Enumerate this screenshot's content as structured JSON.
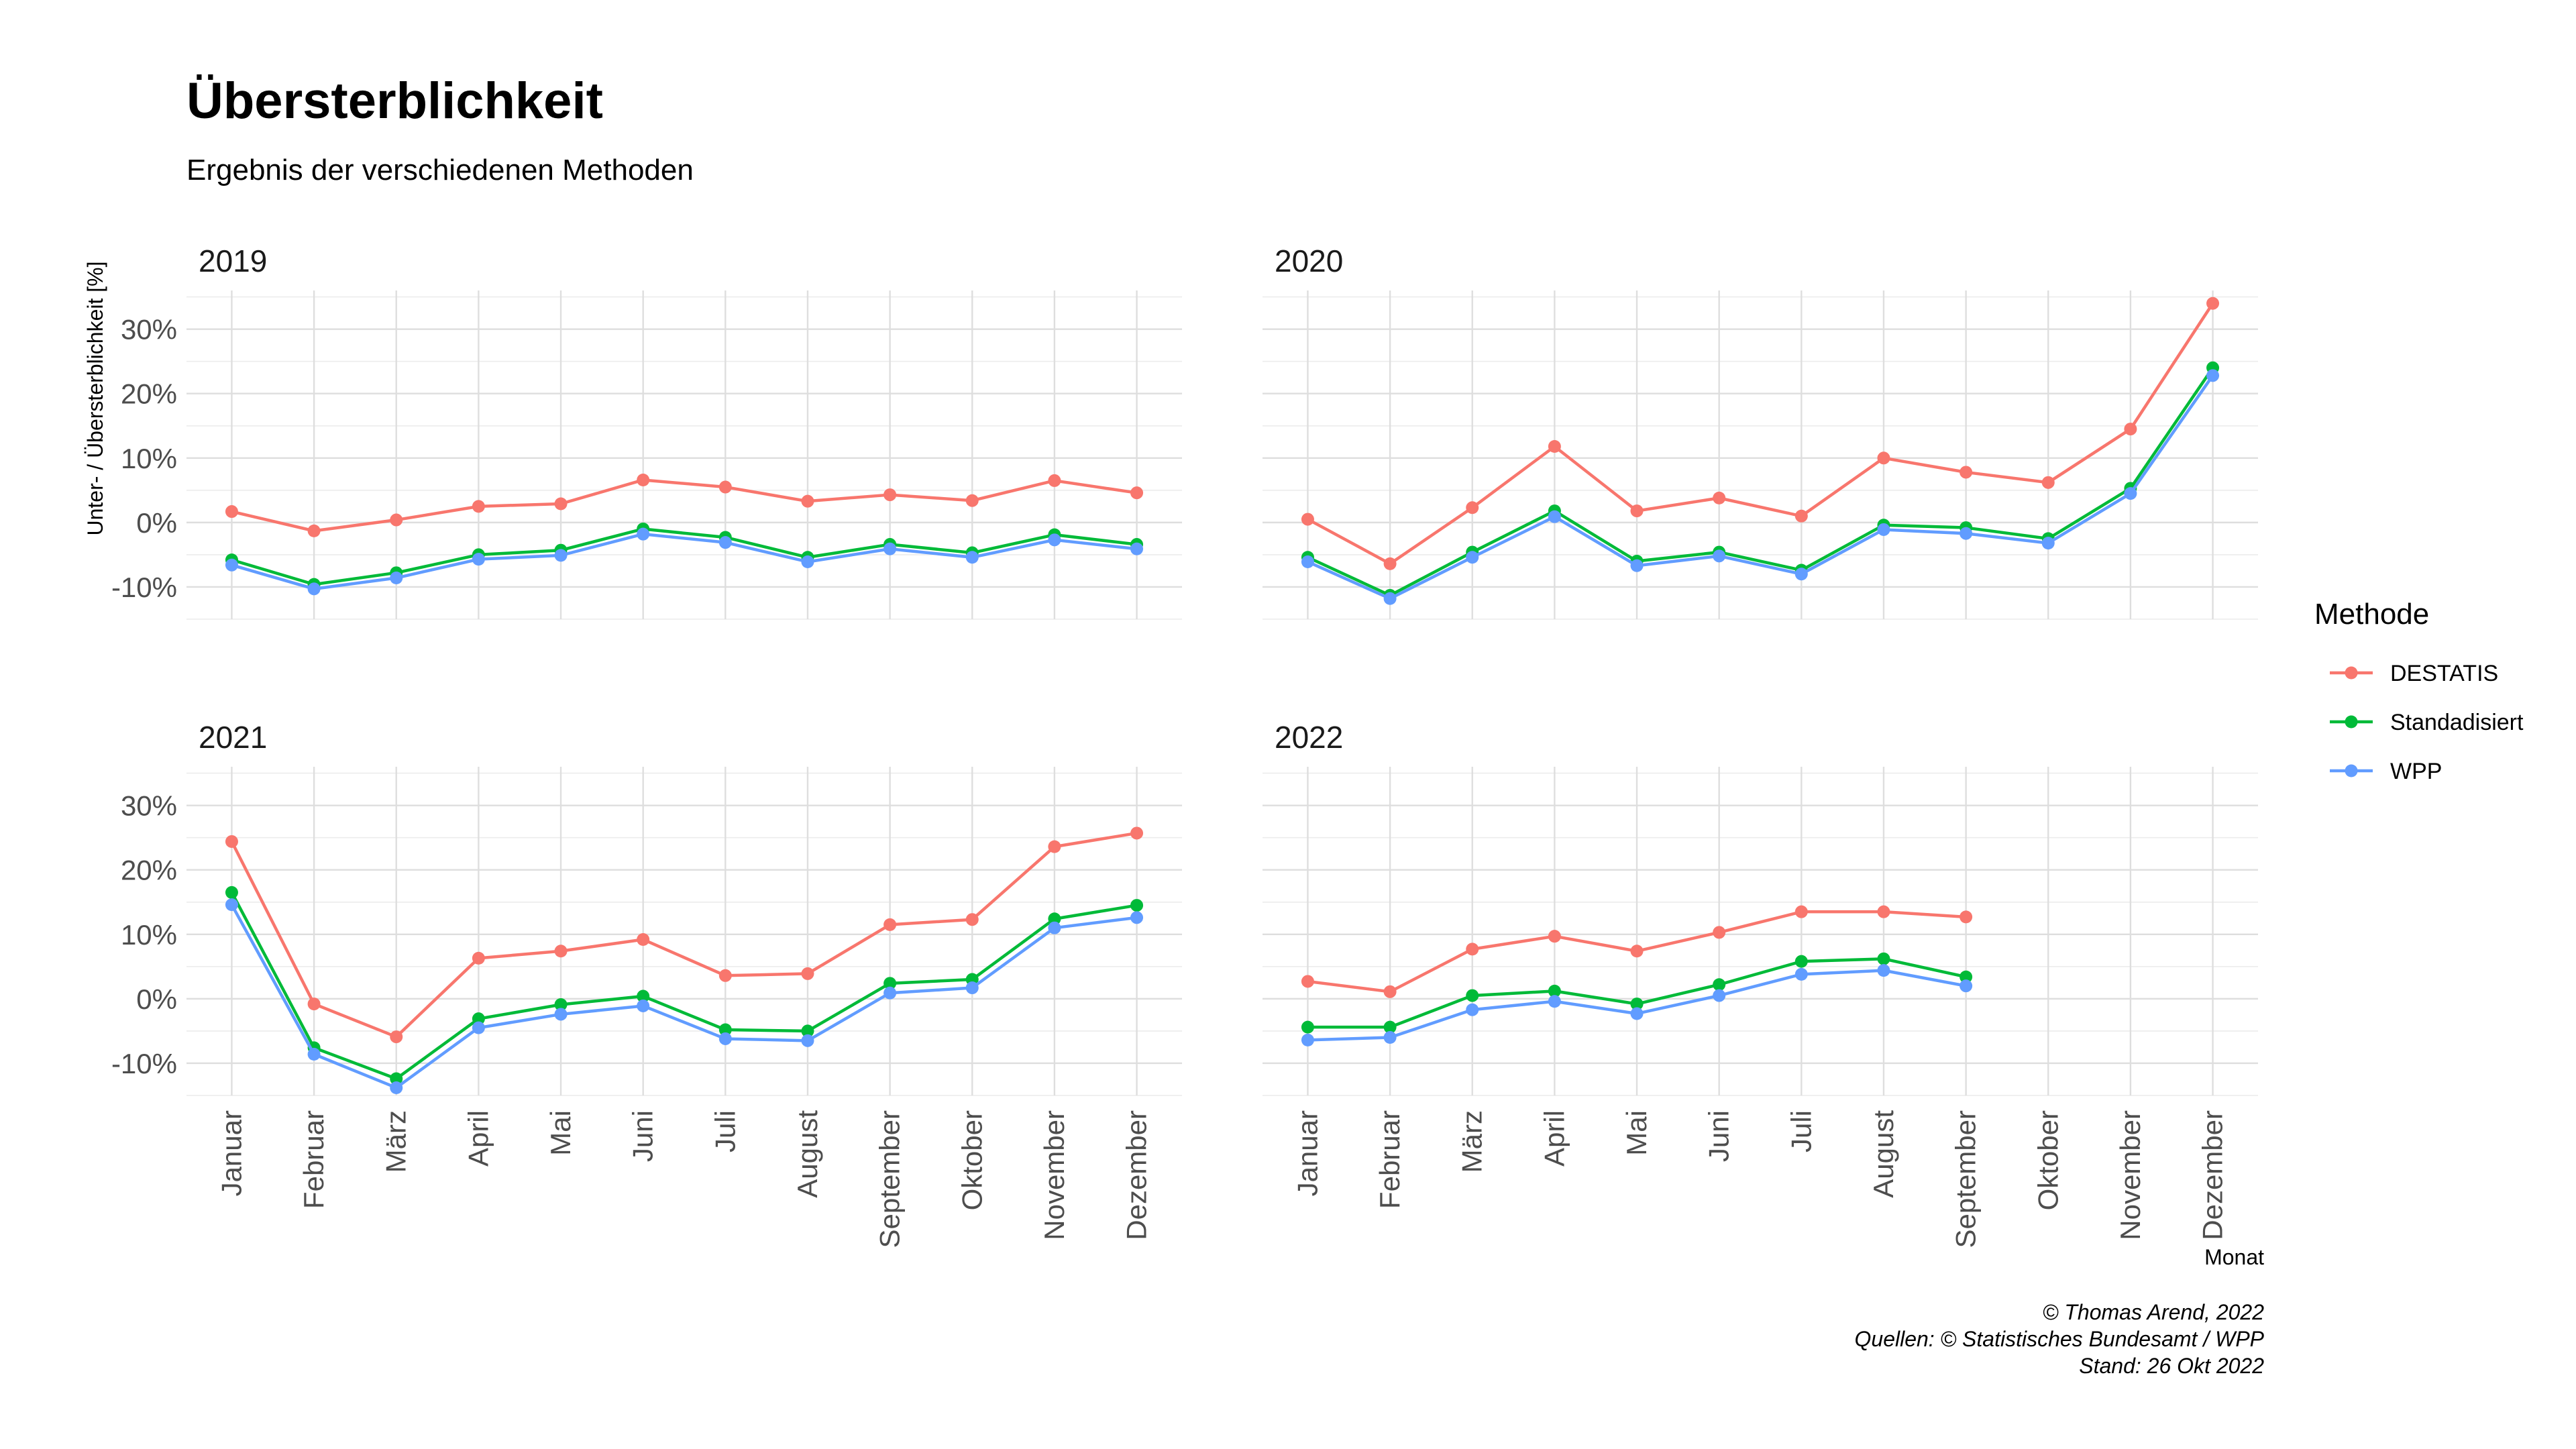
{
  "chart_data": {
    "type": "line",
    "title": "Übersterblichkeit",
    "subtitle": "Ergebnis der verschiedenen Methoden",
    "xlabel": "Monat",
    "ylabel": "Unter- / Übersterblichkeit [%]",
    "ylim": [
      -15,
      36
    ],
    "yticks": [
      -10,
      0,
      10,
      20,
      30
    ],
    "ytick_labels": [
      "-10%",
      "0%",
      "10%",
      "20%",
      "30%"
    ],
    "categories": [
      "Januar",
      "Februar",
      "März",
      "April",
      "Mai",
      "Juni",
      "Juli",
      "August",
      "September",
      "Oktober",
      "November",
      "Dezember"
    ],
    "grid": true,
    "legend": {
      "title": "Methode",
      "position": "right",
      "entries": [
        "DESTATIS",
        "Standadisiert",
        "WPP"
      ]
    },
    "colors": {
      "DESTATIS": "#F8766D",
      "Standadisiert": "#00BA38",
      "WPP": "#619CFF"
    },
    "facets": [
      {
        "label": "2019",
        "series": [
          {
            "name": "DESTATIS",
            "values": [
              1.7,
              -1.3,
              0.4,
              2.5,
              2.9,
              6.6,
              5.5,
              3.3,
              4.3,
              3.4,
              6.5,
              4.6
            ]
          },
          {
            "name": "Standadisiert",
            "values": [
              -5.8,
              -9.6,
              -7.8,
              -5.0,
              -4.3,
              -1.0,
              -2.3,
              -5.4,
              -3.4,
              -4.7,
              -1.9,
              -3.4
            ]
          },
          {
            "name": "WPP",
            "values": [
              -6.6,
              -10.3,
              -8.6,
              -5.7,
              -5.1,
              -1.8,
              -3.1,
              -6.1,
              -4.1,
              -5.4,
              -2.7,
              -4.1
            ]
          }
        ]
      },
      {
        "label": "2020",
        "series": [
          {
            "name": "DESTATIS",
            "values": [
              0.5,
              -6.4,
              2.3,
              11.8,
              1.8,
              3.8,
              1.0,
              10.0,
              7.8,
              6.2,
              14.5,
              34.0
            ]
          },
          {
            "name": "Standadisiert",
            "values": [
              -5.4,
              -11.3,
              -4.6,
              1.8,
              -6.0,
              -4.6,
              -7.4,
              -0.4,
              -0.8,
              -2.5,
              5.3,
              24.0
            ]
          },
          {
            "name": "WPP",
            "values": [
              -6.1,
              -11.8,
              -5.4,
              0.9,
              -6.7,
              -5.2,
              -8.0,
              -1.1,
              -1.7,
              -3.2,
              4.5,
              22.8
            ]
          }
        ]
      },
      {
        "label": "2021",
        "series": [
          {
            "name": "DESTATIS",
            "values": [
              24.4,
              -0.8,
              -5.9,
              6.3,
              7.4,
              9.2,
              3.6,
              3.9,
              11.5,
              12.3,
              23.6,
              25.7
            ]
          },
          {
            "name": "Standadisiert",
            "values": [
              16.5,
              -7.6,
              -12.4,
              -3.1,
              -0.9,
              0.4,
              -4.8,
              -5.0,
              2.4,
              3.0,
              12.4,
              14.5
            ]
          },
          {
            "name": "WPP",
            "values": [
              14.6,
              -8.6,
              -13.8,
              -4.5,
              -2.4,
              -1.1,
              -6.2,
              -6.5,
              0.9,
              1.7,
              11.0,
              12.6
            ]
          }
        ]
      },
      {
        "label": "2022",
        "series": [
          {
            "name": "DESTATIS",
            "values": [
              2.7,
              1.1,
              7.7,
              9.7,
              7.4,
              10.3,
              13.5,
              13.5,
              12.7,
              null,
              null,
              null
            ]
          },
          {
            "name": "Standadisiert",
            "values": [
              -4.4,
              -4.4,
              0.5,
              1.2,
              -0.8,
              2.2,
              5.8,
              6.2,
              3.4,
              null,
              null,
              null
            ]
          },
          {
            "name": "WPP",
            "values": [
              -6.4,
              -6.0,
              -1.7,
              -0.4,
              -2.3,
              0.5,
              3.8,
              4.4,
              2.0,
              null,
              null,
              null
            ]
          }
        ]
      }
    ]
  },
  "caption": {
    "line1": "© Thomas Arend, 2022",
    "line2": "Quellen: © Statistisches Bundesamt / WPP",
    "line3": "Stand: 26 Okt 2022"
  }
}
